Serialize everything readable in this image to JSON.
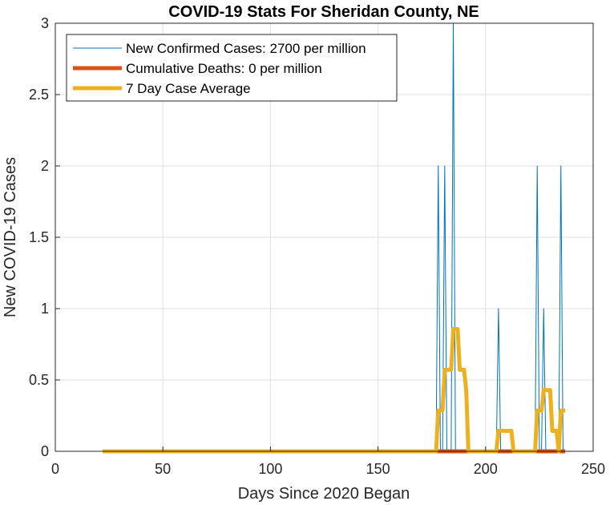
{
  "chart_data": {
    "type": "line",
    "title": "COVID-19 Stats For Sheridan County, NE",
    "xlabel": "Days Since 2020 Began",
    "ylabel": "New COVID-19 Cases",
    "xlim": [
      0,
      250
    ],
    "ylim": [
      0,
      3
    ],
    "xticks": [
      0,
      50,
      100,
      150,
      200,
      250
    ],
    "yticks": [
      0,
      0.5,
      1,
      1.5,
      2,
      2.5,
      3
    ],
    "xtick_labels": [
      "0",
      "50",
      "100",
      "150",
      "200",
      "250"
    ],
    "ytick_labels": [
      "0",
      "0.5",
      "1",
      "1.5",
      "2",
      "2.5",
      "3"
    ],
    "grid": true,
    "legend_position": "top-left",
    "series": [
      {
        "name": "New Confirmed Cases: 2700 per million",
        "color": "#0072BD",
        "style": "thin",
        "x": [
          22,
          177,
          178,
          179,
          180,
          181,
          182,
          184,
          185,
          186,
          205,
          206,
          207,
          223,
          224,
          225,
          226,
          227,
          228,
          234,
          235,
          236
        ],
        "y": [
          0,
          0,
          2,
          0,
          0,
          2,
          0,
          0,
          3,
          0,
          0,
          1,
          0,
          0,
          2,
          0,
          0,
          1,
          0,
          0,
          2,
          0
        ]
      },
      {
        "name": "Cumulative Deaths: 0 per million",
        "color": "#D95319",
        "style": "thick",
        "x": [
          22,
          237
        ],
        "y": [
          0,
          0
        ]
      },
      {
        "name": "7 Day Case Average",
        "color": "#EDB120",
        "style": "thick",
        "x": [
          22,
          177,
          178,
          179,
          180,
          181,
          182,
          183,
          184,
          185,
          186,
          187,
          188,
          189,
          190,
          191,
          192,
          205,
          206,
          207,
          208,
          209,
          210,
          211,
          212,
          213,
          223,
          224,
          225,
          226,
          227,
          228,
          229,
          230,
          231,
          232,
          233,
          234,
          235,
          236,
          237
        ],
        "y": [
          0,
          0,
          0.286,
          0.286,
          0.286,
          0.571,
          0.571,
          0.571,
          0.571,
          0.857,
          0.857,
          0.857,
          0.571,
          0.571,
          0.571,
          0.429,
          0,
          0,
          0.143,
          0.143,
          0.143,
          0.143,
          0.143,
          0.143,
          0.143,
          0,
          0,
          0.286,
          0.286,
          0.286,
          0.429,
          0.429,
          0.429,
          0.429,
          0.143,
          0.143,
          0.143,
          0,
          0.286,
          0.286,
          0.286
        ]
      }
    ]
  }
}
